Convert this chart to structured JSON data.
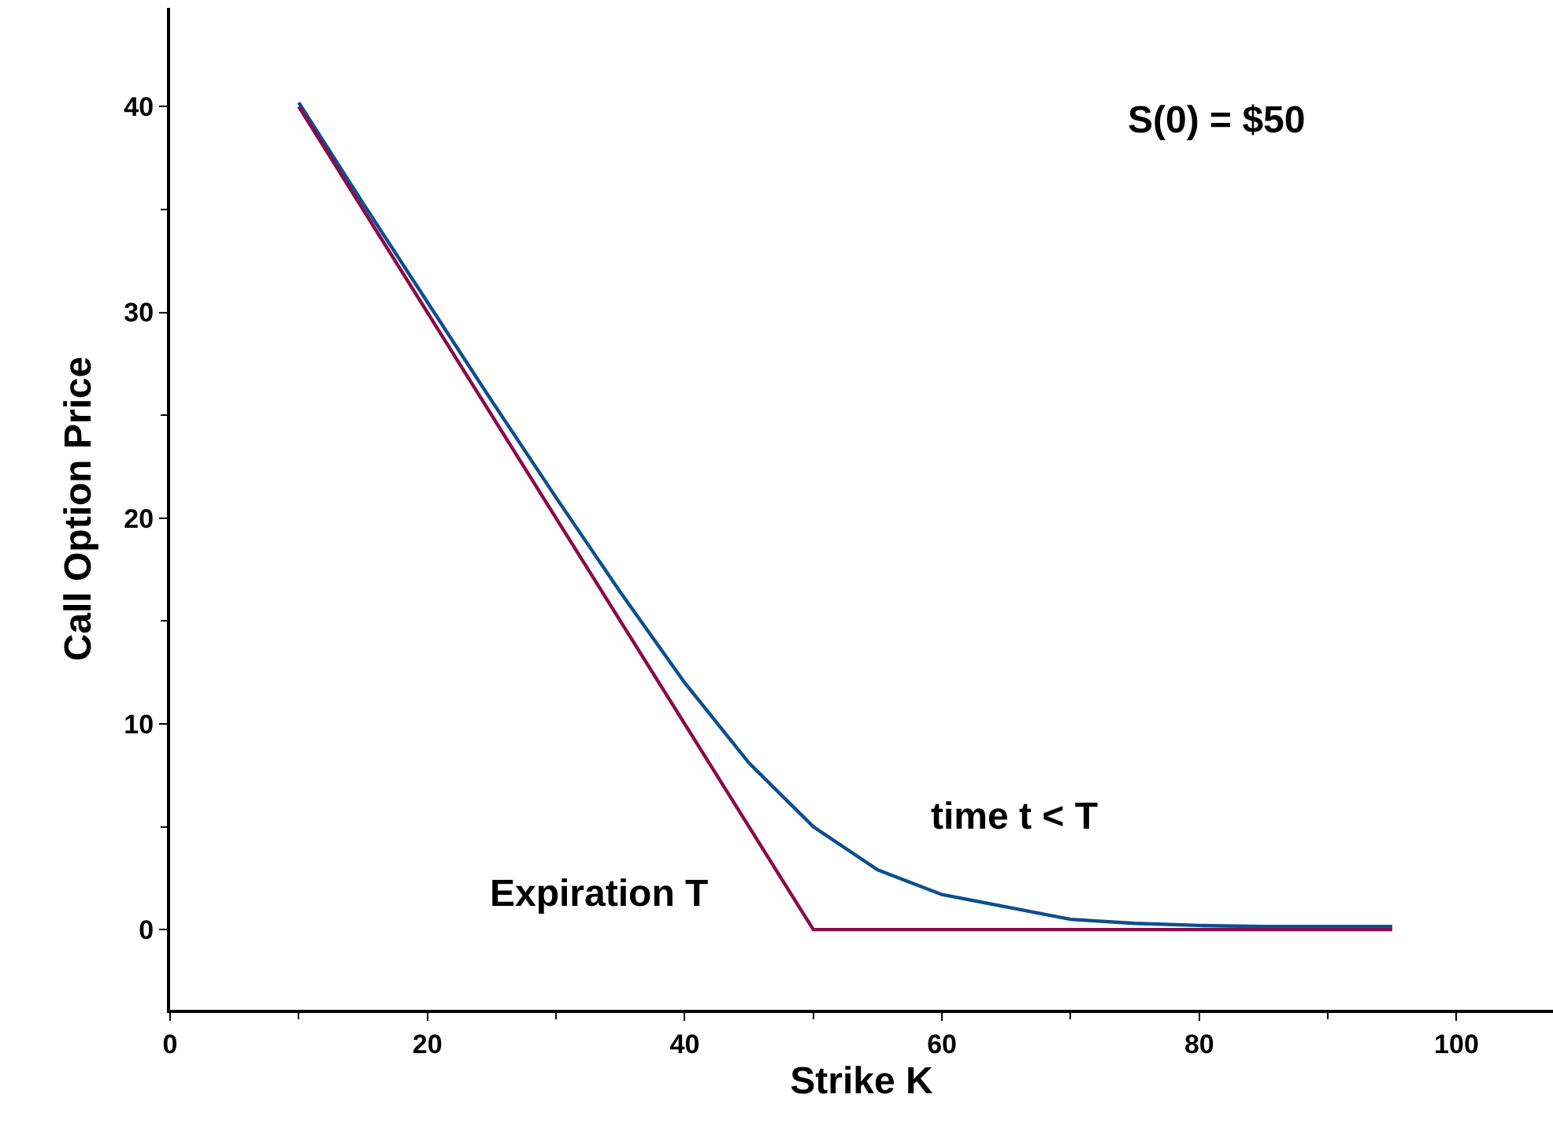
{
  "chart_data": {
    "type": "line",
    "xlabel": "Strike K",
    "ylabel": "Call Option Price",
    "xlim": [
      0,
      107.5
    ],
    "ylim": [
      -3.9,
      44.8
    ],
    "xticks": [
      0,
      20,
      40,
      60,
      80,
      100
    ],
    "yticks": [
      0,
      10,
      20,
      30,
      40
    ],
    "series": [
      {
        "color": "#0c4f8f",
        "x": [
          10,
          15,
          20,
          25,
          30,
          35,
          40,
          45,
          50,
          55,
          60,
          65,
          70,
          75,
          80,
          85,
          90,
          95
        ],
        "values": [
          40.2,
          35.3,
          30.5,
          25.7,
          21.0,
          16.4,
          12.0,
          8.1,
          5.0,
          2.9,
          1.7,
          1.1,
          0.5,
          0.3,
          0.2,
          0.15,
          0.15,
          0.15
        ]
      },
      {
        "color": "#8b0a4a",
        "x": [
          10,
          50,
          95
        ],
        "values": [
          40,
          0,
          0
        ]
      }
    ],
    "annotations": [
      "time t < T",
      "Expiration T",
      "S(0) = $50"
    ],
    "legend": false,
    "marker": "none",
    "line_style": "solid"
  }
}
